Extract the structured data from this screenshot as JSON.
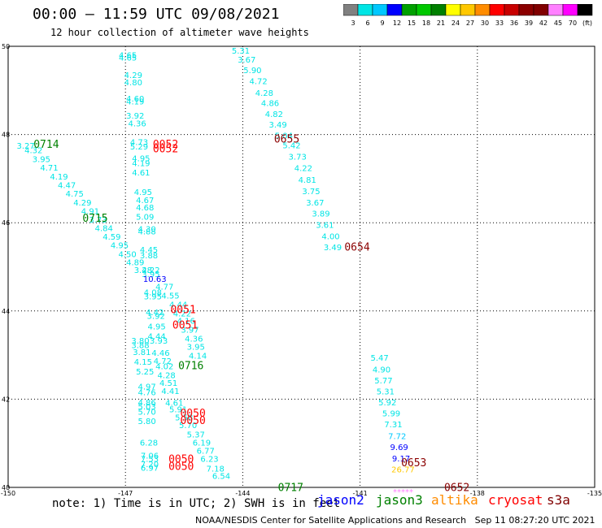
{
  "header": {
    "title": "00:00 – 11:59 UTC 09/08/2021",
    "subtitle": "12 hour collection of altimeter wave heights"
  },
  "color_scale": {
    "colors": [
      "#808080",
      "#00e5e5",
      "#00c8ff",
      "#0000ff",
      "#00a000",
      "#00c800",
      "#008000",
      "#ffff00",
      "#ffc800",
      "#ff8c00",
      "#ff0000",
      "#c80000",
      "#8b0000",
      "#800000",
      "#ff80ff",
      "#ff00ff",
      "#000000"
    ],
    "ticks": [
      "3",
      "6",
      "9",
      "12",
      "15",
      "18",
      "21",
      "24",
      "27",
      "30",
      "33",
      "36",
      "39",
      "42",
      "45",
      "70",
      "(ft)"
    ]
  },
  "footer": {
    "note": "note: 1) Time is in UTC; 2) SWH is in feet",
    "satellites": [
      {
        "label": "jason2",
        "color": "#0000ff"
      },
      {
        "label": "jason3",
        "color": "#008000"
      },
      {
        "label": "altika",
        "color": "#ff8c00"
      },
      {
        "label": "cryosat",
        "color": "#ff0000"
      },
      {
        "label": "s3a",
        "color": "#800000"
      }
    ],
    "credit": "NOAA/NESDIS Center for Satellite Applications and Research   Sep 11 08:27:20 UTC 2021"
  },
  "chart_data": {
    "type": "scatter",
    "title": "00:00 – 11:59 UTC 09/08/2021",
    "subtitle": "12 hour collection of altimeter wave heights",
    "xlim": [
      -150,
      -135
    ],
    "ylim": [
      40,
      50
    ],
    "xticks": [
      "-150",
      "-147",
      "-144",
      "-141",
      "-138",
      "-135"
    ],
    "yticks": [
      "40",
      "42",
      "44",
      "46",
      "48",
      "50"
    ],
    "grid": true,
    "points": [
      {
        "lon": -146.94,
        "lat": 49.73,
        "v": "4.65",
        "c": "#00e5e5"
      },
      {
        "lon": -146.94,
        "lat": 49.68,
        "v": "4.65",
        "c": "#00e5e5"
      },
      {
        "lon": -146.8,
        "lat": 49.28,
        "v": "4.29",
        "c": "#00e5e5"
      },
      {
        "lon": -146.8,
        "lat": 49.12,
        "v": "4.80",
        "c": "#00e5e5"
      },
      {
        "lon": -146.75,
        "lat": 48.75,
        "v": "4.60",
        "c": "#00e5e5"
      },
      {
        "lon": -146.75,
        "lat": 48.68,
        "v": "4.19",
        "c": "#00e5e5"
      },
      {
        "lon": -146.75,
        "lat": 48.36,
        "v": "3.92",
        "c": "#00e5e5"
      },
      {
        "lon": -146.7,
        "lat": 48.19,
        "v": "4.36",
        "c": "#00e5e5"
      },
      {
        "lon": -146.65,
        "lat": 47.76,
        "v": "4.73",
        "c": "#00e5e5"
      },
      {
        "lon": -146.65,
        "lat": 47.66,
        "v": "5.29",
        "c": "#00e5e5"
      },
      {
        "lon": -146.6,
        "lat": 47.39,
        "v": "4.95",
        "c": "#00e5e5"
      },
      {
        "lon": -146.6,
        "lat": 47.28,
        "v": "4.19",
        "c": "#00e5e5"
      },
      {
        "lon": -146.6,
        "lat": 47.07,
        "v": "4.61",
        "c": "#00e5e5"
      },
      {
        "lon": -146.55,
        "lat": 46.63,
        "v": "4.95",
        "c": "#00e5e5"
      },
      {
        "lon": -146.5,
        "lat": 46.45,
        "v": "4.67",
        "c": "#00e5e5"
      },
      {
        "lon": -146.5,
        "lat": 46.28,
        "v": "4.68",
        "c": "#00e5e5"
      },
      {
        "lon": -146.5,
        "lat": 46.07,
        "v": "5.09",
        "c": "#00e5e5"
      },
      {
        "lon": -146.45,
        "lat": 45.79,
        "v": "4.30",
        "c": "#00e5e5"
      },
      {
        "lon": -146.45,
        "lat": 45.74,
        "v": "4.88",
        "c": "#00e5e5"
      },
      {
        "lon": -146.4,
        "lat": 45.32,
        "v": "4.45",
        "c": "#00e5e5"
      },
      {
        "lon": -146.4,
        "lat": 45.19,
        "v": "3.88",
        "c": "#00e5e5"
      },
      {
        "lon": -146.35,
        "lat": 44.86,
        "v": "4.22",
        "c": "#00e5e5"
      },
      {
        "lon": -146.35,
        "lat": 44.77,
        "v": "3.95",
        "c": "#00e5e5"
      },
      {
        "lon": -146.3,
        "lat": 44.36,
        "v": "4.08",
        "c": "#00e5e5"
      },
      {
        "lon": -146.3,
        "lat": 44.26,
        "v": "3.95",
        "c": "#00e5e5"
      },
      {
        "lon": -146.25,
        "lat": 43.9,
        "v": "4.42",
        "c": "#00e5e5"
      },
      {
        "lon": -146.22,
        "lat": 43.82,
        "v": "3.92",
        "c": "#00e5e5"
      },
      {
        "lon": -146.2,
        "lat": 43.58,
        "v": "4.95",
        "c": "#00e5e5"
      },
      {
        "lon": -146.2,
        "lat": 43.36,
        "v": "4.44",
        "c": "#00e5e5"
      },
      {
        "lon": -146.15,
        "lat": 43.26,
        "v": "3.93",
        "c": "#00e5e5"
      },
      {
        "lon": -146.1,
        "lat": 42.98,
        "v": "4.46",
        "c": "#00e5e5"
      },
      {
        "lon": -146.05,
        "lat": 42.8,
        "v": "4.72",
        "c": "#00e5e5"
      },
      {
        "lon": -146.0,
        "lat": 42.68,
        "v": "4.02",
        "c": "#00e5e5"
      },
      {
        "lon": -145.95,
        "lat": 42.48,
        "v": "4.28",
        "c": "#00e5e5"
      },
      {
        "lon": -145.9,
        "lat": 42.3,
        "v": "4.51",
        "c": "#00e5e5"
      },
      {
        "lon": -145.85,
        "lat": 42.12,
        "v": "4.41",
        "c": "#00e5e5"
      },
      {
        "lon": -145.75,
        "lat": 41.85,
        "v": "4.61",
        "c": "#00e5e5"
      },
      {
        "lon": -145.65,
        "lat": 41.7,
        "v": "5.91",
        "c": "#00e5e5"
      },
      {
        "lon": -145.5,
        "lat": 41.52,
        "v": "5.58",
        "c": "#00e5e5"
      },
      {
        "lon": -145.4,
        "lat": 41.34,
        "v": "5.70",
        "c": "#00e5e5"
      },
      {
        "lon": -145.2,
        "lat": 41.13,
        "v": "5.37",
        "c": "#00e5e5"
      },
      {
        "lon": -145.05,
        "lat": 40.95,
        "v": "6.19",
        "c": "#00e5e5"
      },
      {
        "lon": -144.95,
        "lat": 40.76,
        "v": "6.77",
        "c": "#00e5e5"
      },
      {
        "lon": -144.85,
        "lat": 40.58,
        "v": "6.23",
        "c": "#00e5e5"
      },
      {
        "lon": -144.7,
        "lat": 40.36,
        "v": "7.18",
        "c": "#00e5e5"
      },
      {
        "lon": -144.55,
        "lat": 40.19,
        "v": "6.54",
        "c": "#00e5e5"
      },
      {
        "lon": -146.62,
        "lat": 43.26,
        "v": "3.80",
        "c": "#00e5e5"
      },
      {
        "lon": -146.62,
        "lat": 43.16,
        "v": "3.88",
        "c": "#00e5e5"
      },
      {
        "lon": -146.58,
        "lat": 43.0,
        "v": "3.81",
        "c": "#00e5e5"
      },
      {
        "lon": -146.55,
        "lat": 42.78,
        "v": "4.15",
        "c": "#00e5e5"
      },
      {
        "lon": -146.5,
        "lat": 42.56,
        "v": "5.25",
        "c": "#00e5e5"
      },
      {
        "lon": -146.45,
        "lat": 42.22,
        "v": "4.97",
        "c": "#00e5e5"
      },
      {
        "lon": -146.45,
        "lat": 42.09,
        "v": "4.76",
        "c": "#00e5e5"
      },
      {
        "lon": -146.45,
        "lat": 41.86,
        "v": "4.86",
        "c": "#00e5e5"
      },
      {
        "lon": -146.45,
        "lat": 41.77,
        "v": "5.03",
        "c": "#00e5e5"
      },
      {
        "lon": -146.45,
        "lat": 41.65,
        "v": "5.70",
        "c": "#00e5e5"
      },
      {
        "lon": -146.45,
        "lat": 41.44,
        "v": "5.80",
        "c": "#00e5e5"
      },
      {
        "lon": -146.4,
        "lat": 40.95,
        "v": "6.28",
        "c": "#00e5e5"
      },
      {
        "lon": -146.38,
        "lat": 40.65,
        "v": "7.06",
        "c": "#00e5e5"
      },
      {
        "lon": -146.38,
        "lat": 40.58,
        "v": "7.53",
        "c": "#00e5e5"
      },
      {
        "lon": -146.38,
        "lat": 40.46,
        "v": "7.20",
        "c": "#00e5e5"
      },
      {
        "lon": -146.38,
        "lat": 40.38,
        "v": "6.97",
        "c": "#00e5e5"
      },
      {
        "lon": -149.55,
        "lat": 47.68,
        "v": "3.27",
        "c": "#00e5e5"
      },
      {
        "lon": -149.35,
        "lat": 47.58,
        "v": "4.32",
        "c": "#00e5e5"
      },
      {
        "lon": -149.15,
        "lat": 47.38,
        "v": "3.95",
        "c": "#00e5e5"
      },
      {
        "lon": -148.95,
        "lat": 47.18,
        "v": "4.71",
        "c": "#00e5e5"
      },
      {
        "lon": -148.7,
        "lat": 46.98,
        "v": "4.19",
        "c": "#00e5e5"
      },
      {
        "lon": -148.5,
        "lat": 46.79,
        "v": "4.47",
        "c": "#00e5e5"
      },
      {
        "lon": -148.3,
        "lat": 46.59,
        "v": "4.75",
        "c": "#00e5e5"
      },
      {
        "lon": -148.1,
        "lat": 46.39,
        "v": "4.29",
        "c": "#00e5e5"
      },
      {
        "lon": -147.9,
        "lat": 46.2,
        "v": "4.91",
        "c": "#00e5e5"
      },
      {
        "lon": -147.7,
        "lat": 46.0,
        "v": "3.73",
        "c": "#00e5e5"
      },
      {
        "lon": -147.55,
        "lat": 45.81,
        "v": "4.84",
        "c": "#00e5e5"
      },
      {
        "lon": -147.35,
        "lat": 45.62,
        "v": "4.59",
        "c": "#00e5e5"
      },
      {
        "lon": -147.15,
        "lat": 45.42,
        "v": "4.95",
        "c": "#00e5e5"
      },
      {
        "lon": -146.95,
        "lat": 45.22,
        "v": "4.50",
        "c": "#00e5e5"
      },
      {
        "lon": -146.75,
        "lat": 45.04,
        "v": "4.89",
        "c": "#00e5e5"
      },
      {
        "lon": -146.55,
        "lat": 44.86,
        "v": "3.28",
        "c": "#00e5e5"
      },
      {
        "lon": -146.25,
        "lat": 44.66,
        "v": "10.63",
        "c": "#0000ff"
      },
      {
        "lon": -146.0,
        "lat": 44.48,
        "v": "4.77",
        "c": "#00e5e5"
      },
      {
        "lon": -145.85,
        "lat": 44.28,
        "v": "4.55",
        "c": "#00e5e5"
      },
      {
        "lon": -145.65,
        "lat": 44.08,
        "v": "4.44",
        "c": "#00e5e5"
      },
      {
        "lon": -145.55,
        "lat": 43.88,
        "v": "4.22",
        "c": "#00e5e5"
      },
      {
        "lon": -145.45,
        "lat": 43.71,
        "v": "4.16",
        "c": "#00e5e5"
      },
      {
        "lon": -145.35,
        "lat": 43.51,
        "v": "3.97",
        "c": "#00e5e5"
      },
      {
        "lon": -145.25,
        "lat": 43.31,
        "v": "4.36",
        "c": "#00e5e5"
      },
      {
        "lon": -145.2,
        "lat": 43.12,
        "v": "3.95",
        "c": "#00e5e5"
      },
      {
        "lon": -145.15,
        "lat": 42.92,
        "v": "4.14",
        "c": "#00e5e5"
      },
      {
        "lon": -144.05,
        "lat": 49.83,
        "v": "5.31",
        "c": "#00e5e5"
      },
      {
        "lon": -143.9,
        "lat": 49.63,
        "v": "3.67",
        "c": "#00e5e5"
      },
      {
        "lon": -143.75,
        "lat": 49.39,
        "v": "5.90",
        "c": "#00e5e5"
      },
      {
        "lon": -143.6,
        "lat": 49.14,
        "v": "4.72",
        "c": "#00e5e5"
      },
      {
        "lon": -143.45,
        "lat": 48.88,
        "v": "4.28",
        "c": "#00e5e5"
      },
      {
        "lon": -143.3,
        "lat": 48.65,
        "v": "4.86",
        "c": "#00e5e5"
      },
      {
        "lon": -143.2,
        "lat": 48.4,
        "v": "4.82",
        "c": "#00e5e5"
      },
      {
        "lon": -143.1,
        "lat": 48.16,
        "v": "3.49",
        "c": "#00e5e5"
      },
      {
        "lon": -142.95,
        "lat": 47.91,
        "v": "5.04",
        "c": "#00e5e5"
      },
      {
        "lon": -142.75,
        "lat": 47.69,
        "v": "5.42",
        "c": "#00e5e5"
      },
      {
        "lon": -142.6,
        "lat": 47.43,
        "v": "3.73",
        "c": "#00e5e5"
      },
      {
        "lon": -142.45,
        "lat": 47.17,
        "v": "4.22",
        "c": "#00e5e5"
      },
      {
        "lon": -142.35,
        "lat": 46.91,
        "v": "4.81",
        "c": "#00e5e5"
      },
      {
        "lon": -142.25,
        "lat": 46.65,
        "v": "3.75",
        "c": "#00e5e5"
      },
      {
        "lon": -142.15,
        "lat": 46.39,
        "v": "3.67",
        "c": "#00e5e5"
      },
      {
        "lon": -142.0,
        "lat": 46.14,
        "v": "3.89",
        "c": "#00e5e5"
      },
      {
        "lon": -141.9,
        "lat": 45.88,
        "v": "3.61",
        "c": "#00e5e5"
      },
      {
        "lon": -141.75,
        "lat": 45.63,
        "v": "4.00",
        "c": "#00e5e5"
      },
      {
        "lon": -141.7,
        "lat": 45.38,
        "v": "3.49",
        "c": "#00e5e5"
      },
      {
        "lon": -140.5,
        "lat": 42.87,
        "v": "5.47",
        "c": "#00e5e5"
      },
      {
        "lon": -140.45,
        "lat": 42.61,
        "v": "4.90",
        "c": "#00e5e5"
      },
      {
        "lon": -140.4,
        "lat": 42.36,
        "v": "5.77",
        "c": "#00e5e5"
      },
      {
        "lon": -140.35,
        "lat": 42.11,
        "v": "5.31",
        "c": "#00e5e5"
      },
      {
        "lon": -140.3,
        "lat": 41.86,
        "v": "5.92",
        "c": "#00e5e5"
      },
      {
        "lon": -140.2,
        "lat": 41.61,
        "v": "5.99",
        "c": "#00e5e5"
      },
      {
        "lon": -140.15,
        "lat": 41.36,
        "v": "7.31",
        "c": "#00e5e5"
      },
      {
        "lon": -140.05,
        "lat": 41.1,
        "v": "7.72",
        "c": "#00c8ff"
      },
      {
        "lon": -140.0,
        "lat": 40.85,
        "v": "9.69",
        "c": "#0000ff"
      },
      {
        "lon": -139.95,
        "lat": 40.59,
        "v": "9.17",
        "c": "#0000ff"
      },
      {
        "lon": -139.9,
        "lat": 40.34,
        "v": "26.77",
        "c": "#ffc800"
      },
      {
        "lon": -139.9,
        "lat": 39.83,
        "v": "*****",
        "c": "#ff80ff"
      }
    ],
    "pass_labels": [
      {
        "lon": -143.2,
        "lat": 47.82,
        "t": "0655",
        "c": "#8b0000"
      },
      {
        "lon": -146.3,
        "lat": 47.7,
        "t": "0052",
        "c": "#ff0000"
      },
      {
        "lon": -146.3,
        "lat": 47.6,
        "t": "0052",
        "c": "#ff0000"
      },
      {
        "lon": -149.35,
        "lat": 47.7,
        "t": "0714",
        "c": "#008000"
      },
      {
        "lon": -148.1,
        "lat": 46.02,
        "t": "0715",
        "c": "#008000"
      },
      {
        "lon": -141.4,
        "lat": 45.37,
        "t": "0654",
        "c": "#8b0000"
      },
      {
        "lon": -145.85,
        "lat": 43.95,
        "t": "0051",
        "c": "#ff0000"
      },
      {
        "lon": -145.8,
        "lat": 43.6,
        "t": "0051",
        "c": "#ff0000"
      },
      {
        "lon": -145.65,
        "lat": 42.68,
        "t": "0716",
        "c": "#008000"
      },
      {
        "lon": -145.6,
        "lat": 41.6,
        "t": "0050",
        "c": "#ff0000"
      },
      {
        "lon": -145.6,
        "lat": 41.44,
        "t": "0050",
        "c": "#ff0000"
      },
      {
        "lon": -139.95,
        "lat": 40.48,
        "t": "0653",
        "c": "#8b0000"
      },
      {
        "lon": -145.9,
        "lat": 40.56,
        "t": "0050",
        "c": "#ff0000"
      },
      {
        "lon": -145.9,
        "lat": 40.4,
        "t": "0050",
        "c": "#ff0000"
      },
      {
        "lon": -143.1,
        "lat": 39.92,
        "t": "0717",
        "c": "#008000"
      },
      {
        "lon": -138.85,
        "lat": 39.92,
        "t": "0652",
        "c": "#8b0000"
      }
    ]
  }
}
